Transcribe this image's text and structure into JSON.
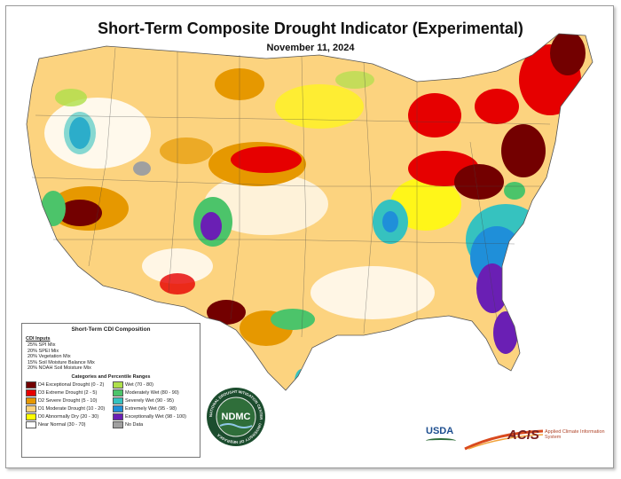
{
  "title": "Short-Term Composite Drought Indicator (Experimental)",
  "date": "November 11, 2024",
  "legend": {
    "heading": "Short-Term CDI Composition",
    "inputs_heading": "CDI Inputs",
    "inputs": [
      "25% SPI Mix",
      "20% SPEI Mix",
      "20% Vegetation Mix",
      "15% Soil Moisture Balance Mix",
      "20% NOAH Soil Moisture Mix"
    ],
    "categories_heading": "Categories and Percentile Ranges",
    "categories": [
      {
        "label": "D4 Exceptional Drought (0 - 2)",
        "color": "#730000"
      },
      {
        "label": "Wet (70 - 80)",
        "color": "#aee04a"
      },
      {
        "label": "D3 Extreme Drought (2 - 5)",
        "color": "#e60000"
      },
      {
        "label": "Moderately Wet (80 - 90)",
        "color": "#4cc46a"
      },
      {
        "label": "D2 Severe Drought (5 - 10)",
        "color": "#e69800"
      },
      {
        "label": "Severely Wet (90 - 95)",
        "color": "#36c2bf"
      },
      {
        "label": "D1 Moderate Drought (10 - 20)",
        "color": "#fcd37f"
      },
      {
        "label": "Extremely Wet (95 - 98)",
        "color": "#1f8fd9"
      },
      {
        "label": "D0 Abnormally Dry (20 - 30)",
        "color": "#ffff00"
      },
      {
        "label": "Exceptionally Wet (98 - 100)",
        "color": "#6a1fb4"
      },
      {
        "label": "Near Normal (30 - 70)",
        "color": "#ffffff"
      },
      {
        "label": "No Data",
        "color": "#a0a0a0"
      }
    ]
  },
  "logos": {
    "ndmc": "NDMC",
    "ndmc_ring": "NATIONAL DROUGHT MITIGATION CENTER · UNIVERSITY OF NEBRASKA",
    "usda": "USDA",
    "acis": "ACIS",
    "acis_sub": "Applied Climate Information System"
  },
  "colors": {
    "d4": "#730000",
    "d3": "#e60000",
    "d2": "#e69800",
    "d1": "#fcd37f",
    "d0": "#ffff00",
    "wet": "#aee04a",
    "mod_wet": "#4cc46a",
    "sev_wet": "#36c2bf",
    "ext_wet": "#1f8fd9",
    "exc_wet": "#6a1fb4",
    "nodata": "#a0a0a0"
  }
}
